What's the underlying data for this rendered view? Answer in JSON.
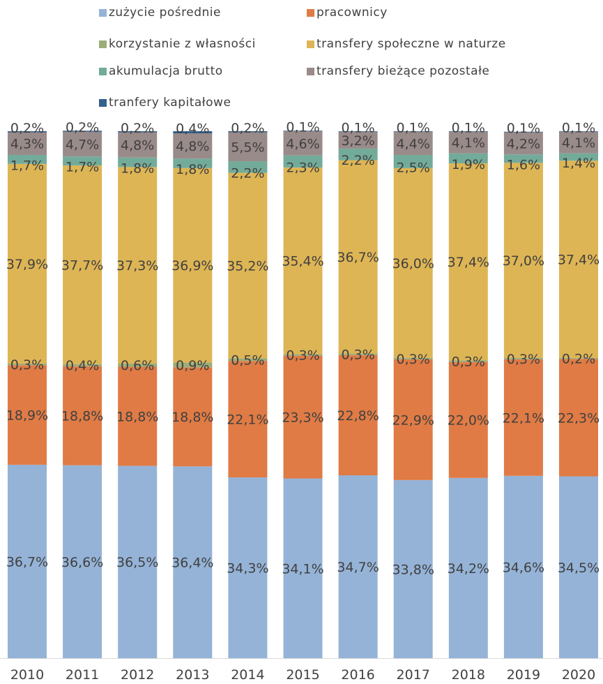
{
  "chart_data": {
    "type": "bar",
    "stacked": true,
    "percent": true,
    "categories": [
      "2010",
      "2011",
      "2012",
      "2013",
      "2014",
      "2015",
      "2016",
      "2017",
      "2018",
      "2019",
      "2020"
    ],
    "series": [
      {
        "name": "zużycie pośrednie",
        "color": "#95b3d7",
        "values": [
          36.7,
          36.6,
          36.5,
          36.4,
          34.3,
          34.1,
          34.7,
          33.8,
          34.2,
          34.6,
          34.5
        ],
        "labels": [
          "36,7%",
          "36,6%",
          "36,5%",
          "36,4%",
          "34,3%",
          "34,1%",
          "34,7%",
          "33,8%",
          "34,2%",
          "34,6%",
          "34,5%"
        ]
      },
      {
        "name": "pracownicy",
        "color": "#e07b45",
        "values": [
          18.9,
          18.8,
          18.8,
          18.8,
          22.1,
          23.3,
          22.8,
          22.9,
          22.0,
          22.1,
          22.3
        ],
        "labels": [
          "18,9%",
          "18,8%",
          "18,8%",
          "18,8%",
          "22,1%",
          "23,3%",
          "22,8%",
          "22,9%",
          "22,0%",
          "22,1%",
          "22,3%"
        ]
      },
      {
        "name": "korzystanie z własności",
        "color": "#9cad79",
        "values": [
          0.3,
          0.4,
          0.6,
          0.9,
          0.5,
          0.3,
          0.3,
          0.3,
          0.3,
          0.3,
          0.2
        ],
        "labels": [
          "0,3%",
          "0,4%",
          "0,6%",
          "0,9%",
          "0,5%",
          "0,3%",
          "0,3%",
          "0,3%",
          "0,3%",
          "0,3%",
          "0,2%"
        ]
      },
      {
        "name": "transfery społeczne w naturze",
        "color": "#deb555",
        "values": [
          37.9,
          37.7,
          37.3,
          36.9,
          35.2,
          35.4,
          36.7,
          36.0,
          37.4,
          37.0,
          37.4
        ],
        "labels": [
          "37,9%",
          "37,7%",
          "37,3%",
          "36,9%",
          "35,2%",
          "35,4%",
          "36,7%",
          "36,0%",
          "37,4%",
          "37,0%",
          "37,4%"
        ]
      },
      {
        "name": "akumulacja brutto",
        "color": "#73ab9a",
        "values": [
          1.7,
          1.7,
          1.8,
          1.8,
          2.2,
          2.3,
          2.2,
          2.5,
          1.9,
          1.6,
          1.4
        ],
        "labels": [
          "1,7%",
          "1,7%",
          "1,8%",
          "1,8%",
          "2,2%",
          "2,3%",
          "2,2%",
          "2,5%",
          "1,9%",
          "1,6%",
          "1,4%"
        ]
      },
      {
        "name": "transfery bieżące pozostałe",
        "color": "#998b8a",
        "values": [
          4.3,
          4.7,
          4.8,
          4.8,
          5.5,
          4.6,
          3.2,
          4.4,
          4.1,
          4.2,
          4.1
        ],
        "labels": [
          "4,3%",
          "4,7%",
          "4,8%",
          "4,8%",
          "5,5%",
          "4,6%",
          "3,2%",
          "4,4%",
          "4,1%",
          "4,2%",
          "4,1%"
        ]
      },
      {
        "name": "tranfery kapitałowe",
        "color": "#33608c",
        "values": [
          0.2,
          0.2,
          0.2,
          0.4,
          0.2,
          0.1,
          0.1,
          0.1,
          0.1,
          0.1,
          0.1
        ],
        "labels": [
          "0,2%",
          "0,2%",
          "0,2%",
          "0,4%",
          "0,2%",
          "0,1%",
          "0,1%",
          "0,1%",
          "0,1%",
          "0,1%",
          "0,1%"
        ]
      }
    ],
    "ylim": [
      0,
      100
    ],
    "legend_position": "top",
    "grid": false,
    "title": "",
    "xlabel": "",
    "ylabel": ""
  }
}
